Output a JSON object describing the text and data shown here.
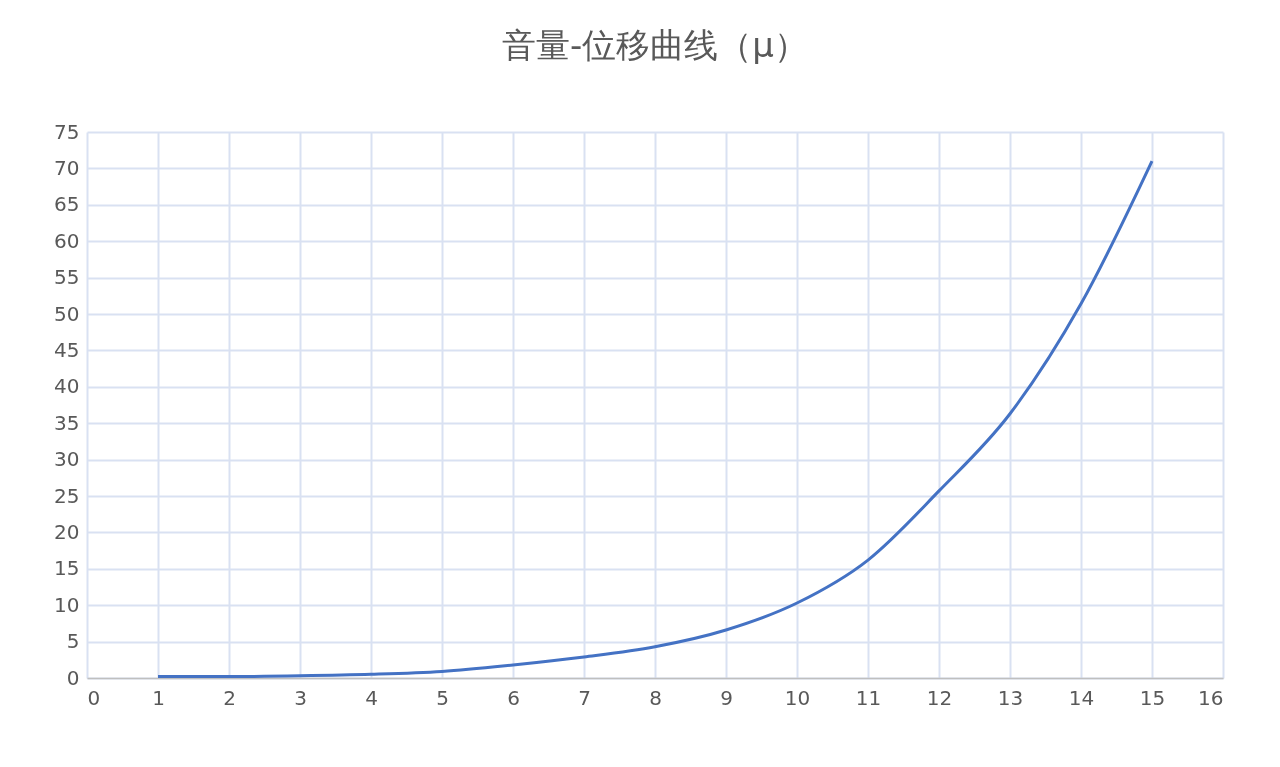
{
  "chart_data": {
    "type": "line",
    "title": "音量-位移曲线（μ）",
    "x": [
      1,
      2,
      3,
      4,
      5,
      6,
      7,
      8,
      9,
      10,
      11,
      12,
      13,
      14,
      15
    ],
    "series": [
      {
        "color": "#4472c4",
        "values": [
          0.2,
          0.2,
          0.3,
          0.5,
          0.9,
          1.8,
          2.9,
          4.3,
          6.6,
          10.3,
          16.2,
          25.7,
          36.3,
          51.4,
          71
        ]
      }
    ],
    "xlim": [
      0,
      16
    ],
    "xticks": [
      0,
      1,
      2,
      3,
      4,
      5,
      6,
      7,
      8,
      9,
      10,
      11,
      12,
      13,
      14,
      15,
      16
    ],
    "ylim": [
      0,
      75
    ],
    "yticks": [
      0,
      5,
      10,
      15,
      20,
      25,
      30,
      35,
      40,
      45,
      50,
      55,
      60,
      65,
      70,
      75
    ],
    "grid": true,
    "marker": "none",
    "line_style": "solid"
  }
}
